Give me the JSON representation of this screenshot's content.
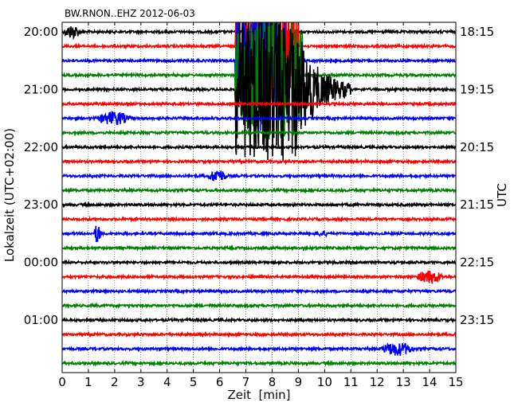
{
  "chart_data": {
    "type": "line",
    "title": "BW.RNON..EHZ 2012-06-03",
    "xlabel": "Zeit  [min]",
    "ylabel_left": "Lokalzeit (UTC+02:00)",
    "ylabel_right": "UTC",
    "xlim": [
      0,
      15
    ],
    "x_ticks": [
      "0",
      "1",
      "2",
      "3",
      "4",
      "5",
      "6",
      "7",
      "8",
      "9",
      "10",
      "11",
      "12",
      "13",
      "14",
      "15"
    ],
    "row_minutes": 15,
    "row_count": 24,
    "left_tick_labels": [
      "20:00",
      "21:00",
      "22:00",
      "23:00",
      "00:00",
      "01:00"
    ],
    "right_tick_labels": [
      "18:15",
      "19:15",
      "20:15",
      "21:15",
      "22:15",
      "23:15"
    ],
    "trace_colors": [
      "#000000",
      "#ff0000",
      "#0000ff",
      "#008000"
    ],
    "events": [
      {
        "row": 0,
        "start_min": 0.0,
        "end_min": 1.0,
        "amplitude": "moderate"
      },
      {
        "row": 1,
        "start_min": 6.6,
        "end_min": 9.0,
        "amplitude": "clipped"
      },
      {
        "row": 2,
        "start_min": 6.6,
        "end_min": 8.5,
        "amplitude": "clipped"
      },
      {
        "row": 3,
        "start_min": 6.6,
        "end_min": 9.2,
        "amplitude": "clipped"
      },
      {
        "row": 4,
        "start_min": 6.6,
        "end_min": 11.0,
        "amplitude": "clipped, decaying coda"
      },
      {
        "row": 6,
        "start_min": 1.2,
        "end_min": 3.2,
        "amplitude": "moderate"
      },
      {
        "row": 10,
        "start_min": 5.5,
        "end_min": 6.6,
        "amplitude": "moderate"
      },
      {
        "row": 14,
        "start_min": 1.2,
        "end_min": 1.5,
        "amplitude": "moderate spike"
      },
      {
        "row": 14,
        "start_min": 9.5,
        "end_min": 10.3,
        "amplitude": "small"
      },
      {
        "row": 17,
        "start_min": 13.4,
        "end_min": 15.0,
        "amplitude": "moderate"
      },
      {
        "row": 22,
        "start_min": 12.0,
        "end_min": 14.0,
        "amplitude": "moderate"
      }
    ],
    "grid": true,
    "grid_style": "dotted vertical lines at each minute"
  }
}
